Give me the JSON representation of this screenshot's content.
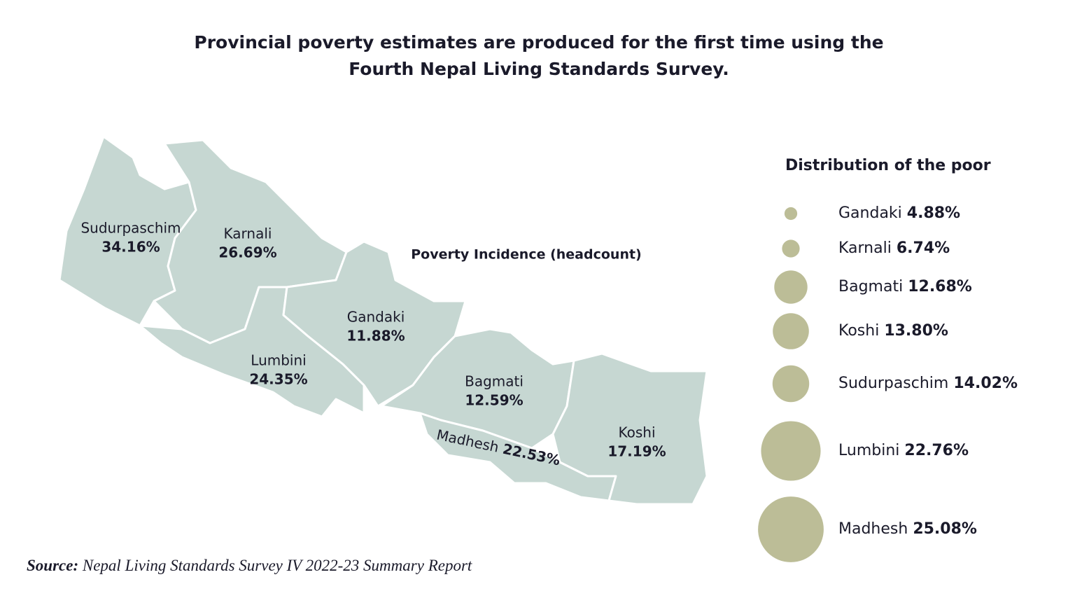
{
  "header": {
    "title_line1": "Provincial poverty estimates are produced for the first time using the",
    "title_line2": "Fourth Nepal Living Standards Survey."
  },
  "map": {
    "title": "Poverty Incidence (headcount)",
    "provinces": [
      {
        "name": "Sudurpaschim",
        "incidence": "34.16%"
      },
      {
        "name": "Karnali",
        "incidence": "26.69%"
      },
      {
        "name": "Gandaki",
        "incidence": "11.88%"
      },
      {
        "name": "Lumbini",
        "incidence": "24.35%"
      },
      {
        "name": "Bagmati",
        "incidence": "12.59%"
      },
      {
        "name": "Madhesh",
        "incidence": "22.53%"
      },
      {
        "name": "Koshi",
        "incidence": "17.19%"
      }
    ]
  },
  "legend": {
    "title": "Distribution of the poor",
    "items": [
      {
        "name": "Gandaki",
        "value": 4.88,
        "label": "4.88%"
      },
      {
        "name": "Karnali",
        "value": 6.74,
        "label": "6.74%"
      },
      {
        "name": "Bagmati",
        "value": 12.68,
        "label": "12.68%"
      },
      {
        "name": "Koshi",
        "value": 13.8,
        "label": "13.80%"
      },
      {
        "name": "Sudurpaschim",
        "value": 14.02,
        "label": "14.02%"
      },
      {
        "name": "Lumbini",
        "value": 22.76,
        "label": "22.76%"
      },
      {
        "name": "Madhesh",
        "value": 25.08,
        "label": "25.08%"
      }
    ]
  },
  "source": {
    "label": "Source:",
    "text": "Nepal Living Standards Survey IV 2022-23 Summary Report"
  }
}
